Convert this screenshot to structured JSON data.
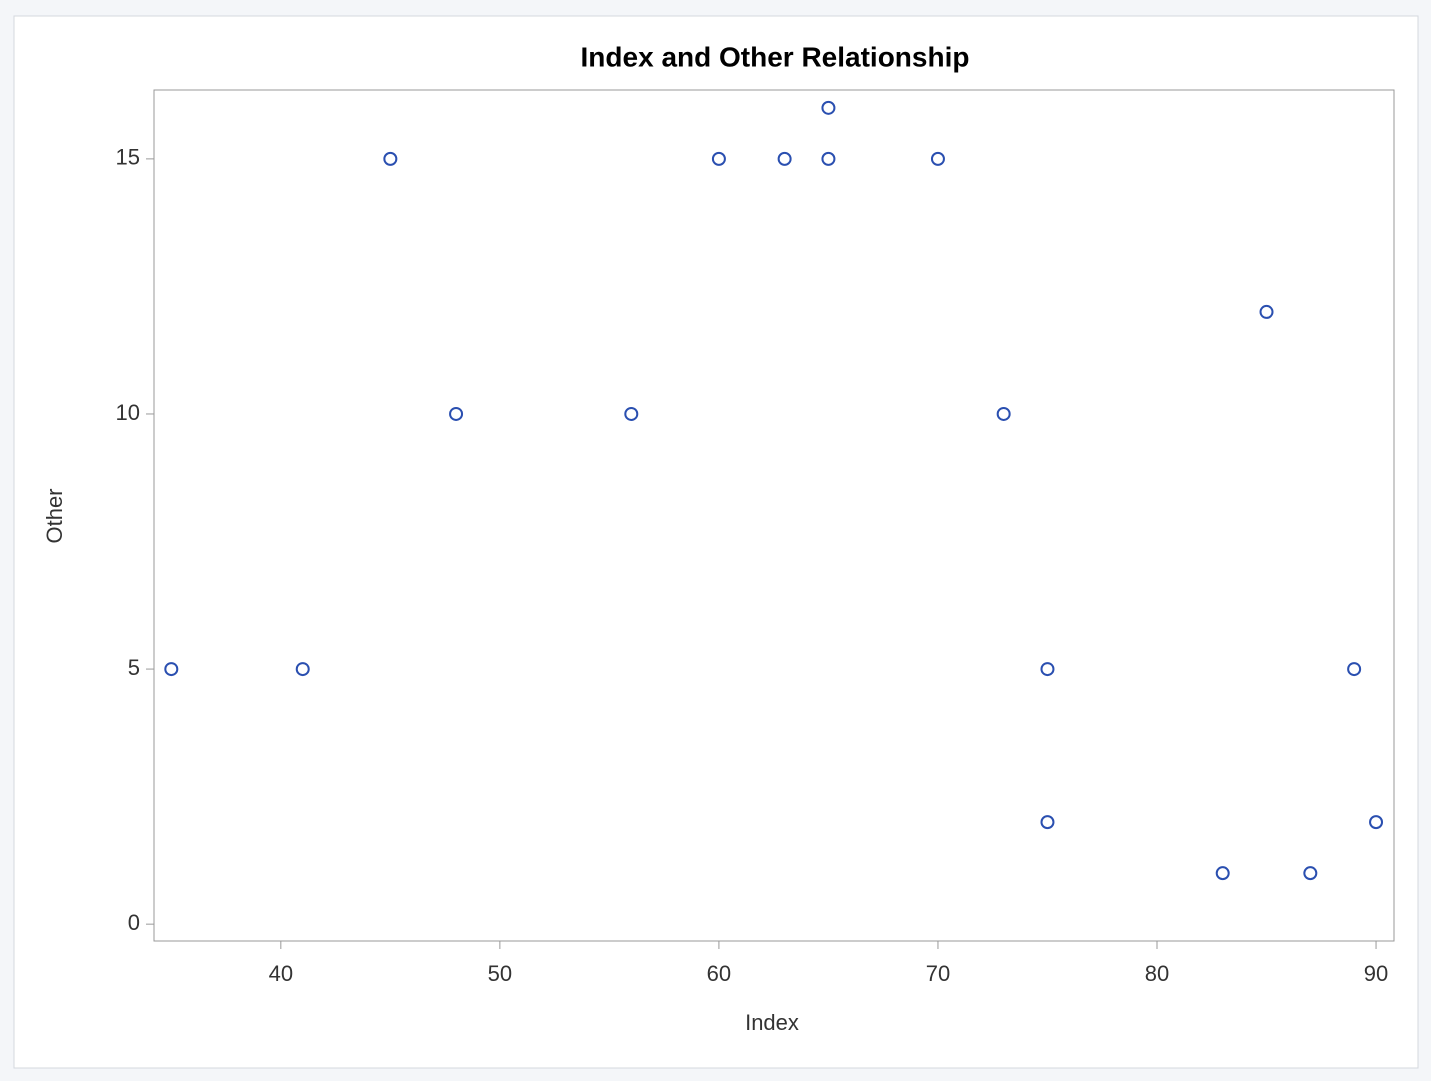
{
  "chart_data": {
    "type": "scatter",
    "title": "Index and Other Relationship",
    "x_label": "Index",
    "y_label": "Other",
    "series": [
      {
        "color": "#2a4fb0",
        "x": [
          35,
          41,
          45,
          48,
          56,
          60,
          63,
          65,
          65,
          70,
          73,
          75,
          75,
          83,
          85,
          87,
          89,
          90
        ],
        "values": [
          5,
          5,
          15,
          10,
          10,
          15,
          15,
          16,
          15,
          15,
          10,
          5,
          2,
          1,
          12,
          1,
          5,
          2
        ]
      }
    ],
    "xlim": [
      34.21,
      90.82
    ],
    "xticks": [
      40,
      50,
      60,
      70,
      80,
      90
    ],
    "ylim": [
      -0.33,
      16.35
    ],
    "yticks": [
      0,
      5,
      10,
      15
    ]
  }
}
